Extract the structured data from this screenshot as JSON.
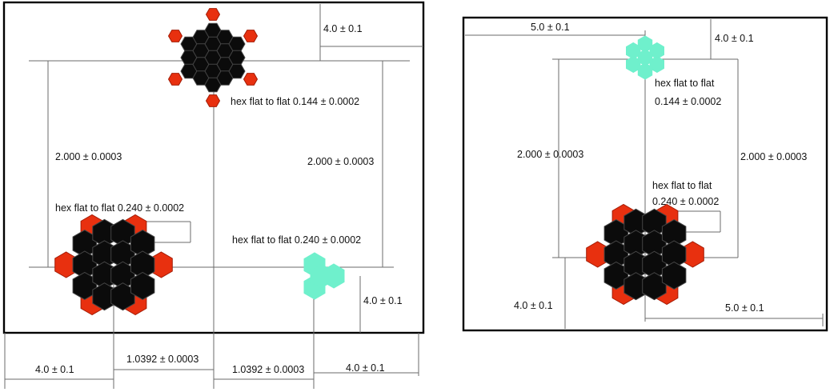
{
  "colors": {
    "hex_black": "#0b0b0b",
    "hex_red": "#e8300f",
    "hex_cyan": "#6ff0cc",
    "frame": "#000000",
    "dimension_line": "#6b6b6b"
  },
  "left_panel": {
    "dim_top_right_offset": "4.0 ± 0.1",
    "dim_left_height": "2.000 ± 0.0003",
    "dim_right_height": "2.000 ± 0.0003",
    "label_top_cluster": "hex flat to flat 0.144 ± 0.0002",
    "label_bottom_left_cluster": "hex flat to flat 0.240 ± 0.0002",
    "label_bottom_right_cluster": "hex flat to flat 0.240 ± 0.0002",
    "dim_bottom_right_offset": "4.0 ± 0.1",
    "dim_bottom_left_width": "4.0 ± 0.1",
    "dim_center_left_width": "1.0392 ± 0.0003",
    "dim_center_right_width": "1.0392 ± 0.0003",
    "dim_bottom_right_width": "4.0 ± 0.1"
  },
  "right_panel": {
    "dim_top_left_width": "5.0 ± 0.1",
    "dim_top_right_offset": "4.0 ± 0.1",
    "label_top_cluster_line1": "hex flat to flat",
    "label_top_cluster_line2": "0.144 ± 0.0002",
    "dim_left_height": "2.000 ± 0.0003",
    "dim_right_height": "2.000 ± 0.0003",
    "label_bottom_cluster_line1": "hex flat to flat",
    "label_bottom_cluster_line2": "0.240 ± 0.0002",
    "dim_bottom_left_offset": "4.0 ± 0.1",
    "dim_bottom_right_width": "5.0 ± 0.1"
  }
}
